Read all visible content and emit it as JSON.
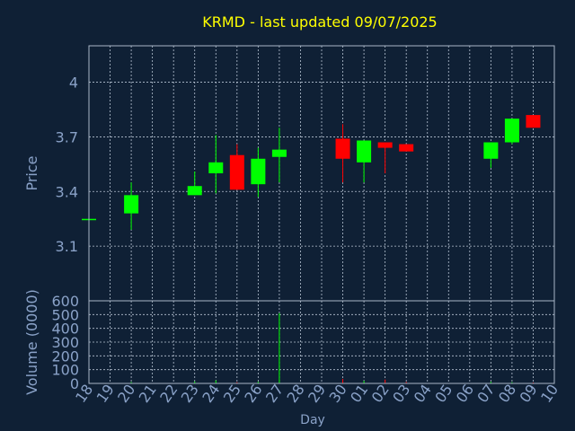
{
  "colors": {
    "background": "#0f2035",
    "frame": "#a9b6c6",
    "grid": "#b8c4d4",
    "title": "#ffff00",
    "axis_text": "#8aa2c8",
    "up": "#00ff00",
    "down": "#ff0000"
  },
  "chart_data": [
    {
      "type": "candlestick",
      "title": "KRMD - last updated 09/07/2025",
      "ylabel": "Price",
      "ylim": [
        2.8,
        4.2
      ],
      "yticks": [
        3.1,
        3.4,
        3.7,
        4
      ],
      "ytick_labels": [
        "3.1",
        "3.4",
        "3.7",
        "4"
      ],
      "grid": true,
      "categories": [
        "18",
        "19",
        "20",
        "21",
        "22",
        "23",
        "24",
        "25",
        "26",
        "27",
        "28",
        "29",
        "30",
        "01",
        "02",
        "03",
        "04",
        "05",
        "06",
        "07",
        "08",
        "09",
        "10"
      ],
      "candles": [
        {
          "x": "18",
          "open": 3.25,
          "close": 3.25,
          "high": 3.25,
          "low": 3.25
        },
        {
          "x": "20",
          "open": 3.28,
          "close": 3.38,
          "high": 3.45,
          "low": 3.19
        },
        {
          "x": "23",
          "open": 3.38,
          "close": 3.43,
          "high": 3.51,
          "low": 3.38
        },
        {
          "x": "24",
          "open": 3.5,
          "close": 3.56,
          "high": 3.71,
          "low": 3.39
        },
        {
          "x": "25",
          "open": 3.6,
          "close": 3.41,
          "high": 3.66,
          "low": 3.41
        },
        {
          "x": "26",
          "open": 3.44,
          "close": 3.58,
          "high": 3.64,
          "low": 3.37
        },
        {
          "x": "27",
          "open": 3.59,
          "close": 3.63,
          "high": 3.75,
          "low": 3.45
        },
        {
          "x": "30",
          "open": 3.69,
          "close": 3.58,
          "high": 3.77,
          "low": 3.45
        },
        {
          "x": "01",
          "open": 3.56,
          "close": 3.68,
          "high": 3.68,
          "low": 3.45
        },
        {
          "x": "02",
          "open": 3.67,
          "close": 3.64,
          "high": 3.67,
          "low": 3.5
        },
        {
          "x": "03",
          "open": 3.66,
          "close": 3.62,
          "high": 3.66,
          "low": 3.62
        },
        {
          "x": "07",
          "open": 3.58,
          "close": 3.67,
          "high": 3.67,
          "low": 3.53
        },
        {
          "x": "08",
          "open": 3.67,
          "close": 3.8,
          "high": 3.8,
          "low": 3.66
        },
        {
          "x": "09",
          "open": 3.82,
          "close": 3.75,
          "high": 3.82,
          "low": 3.75
        }
      ]
    },
    {
      "type": "bar",
      "title": "",
      "xlabel": "Day",
      "ylabel": "Volume (0000)",
      "ylim": [
        0,
        600
      ],
      "yticks": [
        0,
        100,
        200,
        300,
        400,
        500,
        600
      ],
      "ytick_labels": [
        "0",
        "100",
        "200",
        "300",
        "400",
        "500",
        "600"
      ],
      "grid": true,
      "categories": [
        "18",
        "19",
        "20",
        "21",
        "22",
        "23",
        "24",
        "25",
        "26",
        "27",
        "28",
        "29",
        "30",
        "01",
        "02",
        "03",
        "04",
        "05",
        "06",
        "07",
        "08",
        "09",
        "10"
      ],
      "values": [
        {
          "x": "18",
          "volume": 1,
          "direction": "up"
        },
        {
          "x": "20",
          "volume": 10,
          "direction": "up"
        },
        {
          "x": "23",
          "volume": 14,
          "direction": "up"
        },
        {
          "x": "24",
          "volume": 22,
          "direction": "up"
        },
        {
          "x": "25",
          "volume": 9,
          "direction": "down"
        },
        {
          "x": "26",
          "volume": 12,
          "direction": "up"
        },
        {
          "x": "27",
          "volume": 510,
          "direction": "up"
        },
        {
          "x": "30",
          "volume": 33,
          "direction": "down"
        },
        {
          "x": "01",
          "volume": 18,
          "direction": "up"
        },
        {
          "x": "02",
          "volume": 28,
          "direction": "down"
        },
        {
          "x": "03",
          "volume": 11,
          "direction": "down"
        },
        {
          "x": "07",
          "volume": 12,
          "direction": "up"
        },
        {
          "x": "08",
          "volume": 9,
          "direction": "up"
        },
        {
          "x": "09",
          "volume": 7,
          "direction": "down"
        }
      ]
    }
  ]
}
